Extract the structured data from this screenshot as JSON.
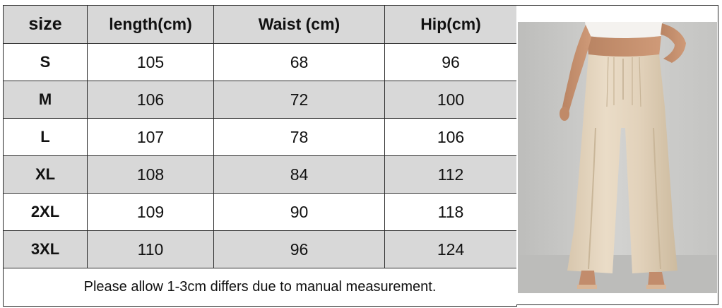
{
  "table": {
    "headers": [
      "size",
      "length(cm)",
      "Waist (cm)",
      "Hip(cm)"
    ],
    "rows": [
      {
        "size": "S",
        "length": "105",
        "waist": "68",
        "hip": "96"
      },
      {
        "size": "M",
        "length": "106",
        "waist": "72",
        "hip": "100"
      },
      {
        "size": "L",
        "length": "107",
        "waist": "78",
        "hip": "106"
      },
      {
        "size": "XL",
        "length": "108",
        "waist": "84",
        "hip": "112"
      },
      {
        "size": "2XL",
        "length": "109",
        "waist": "90",
        "hip": "118"
      },
      {
        "size": "3XL",
        "length": "110",
        "waist": "96",
        "hip": "124"
      }
    ],
    "note": "Please allow 1-3cm differs due to manual measurement."
  },
  "colors": {
    "header_bg": "#d8d8d8",
    "alt_row_bg": "#d8d8d8",
    "border": "#2a2a2a",
    "pants": "#e3d3bd",
    "backdrop": "#c9c9c7"
  },
  "photo": {
    "subject": "model-wearing-wide-leg-pants"
  }
}
